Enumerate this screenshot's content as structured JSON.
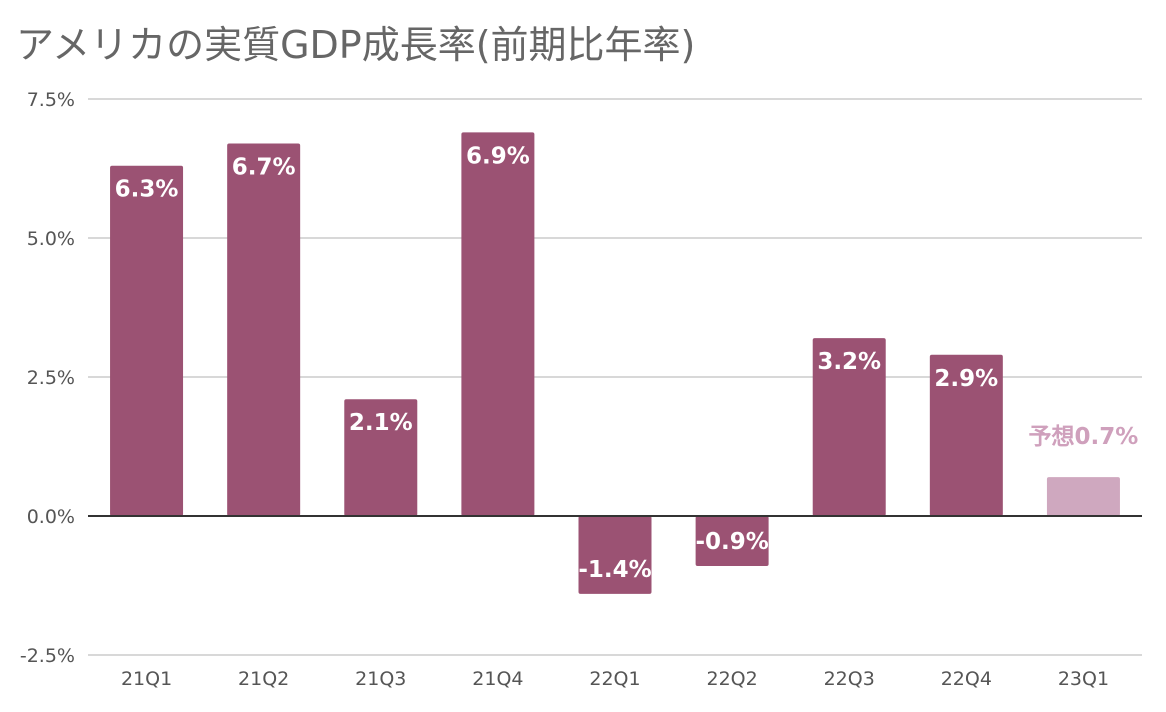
{
  "chart_data": {
    "type": "bar",
    "title": "アメリカの実質GDP成長率(前期比年率)",
    "xlabel": "",
    "ylabel": "",
    "categories": [
      "21Q1",
      "21Q2",
      "21Q3",
      "21Q4",
      "22Q1",
      "22Q2",
      "22Q3",
      "22Q4",
      "23Q1"
    ],
    "values": [
      6.3,
      6.7,
      2.1,
      6.9,
      -1.4,
      -0.9,
      3.2,
      2.9,
      0.7
    ],
    "data_labels": [
      "6.3%",
      "6.7%",
      "2.1%",
      "6.9%",
      "-1.4%",
      "-0.9%",
      "3.2%",
      "2.9%",
      "予想0.7%"
    ],
    "forecast_flags": [
      false,
      false,
      false,
      false,
      false,
      false,
      false,
      false,
      true
    ],
    "ylim": [
      -2.5,
      7.5
    ],
    "yticks": [
      7.5,
      5.0,
      2.5,
      0.0,
      -2.5
    ],
    "ytick_labels": [
      "7.5%",
      "5.0%",
      "2.5%",
      "0.0%",
      "-2.5%"
    ],
    "grid": true,
    "legend": "none",
    "colors": {
      "bar": "#9b5273",
      "forecast_bar": "#cfa8bf",
      "label_inside": "#ffffff",
      "forecast_label": "#cfa0bc",
      "grid": "#cccccc",
      "zero_line": "#333333",
      "title": "#666666",
      "tick": "#555555"
    }
  }
}
